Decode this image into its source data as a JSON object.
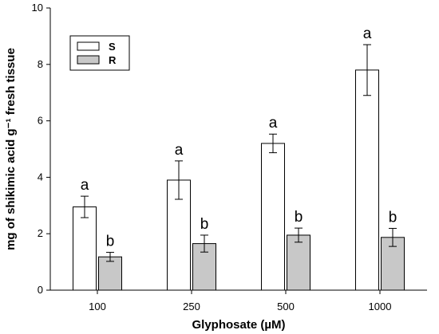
{
  "chart_data": {
    "type": "bar",
    "xlabel": "Glyphosate (µM)",
    "ylabel": "mg of shikimic acid g⁻¹ fresh tissue",
    "categories": [
      "100",
      "250",
      "500",
      "1000"
    ],
    "ylim": [
      0,
      10
    ],
    "yticks": [
      0,
      2,
      4,
      6,
      8,
      10
    ],
    "legend_position": "top-left",
    "grid": false,
    "series": [
      {
        "name": "S",
        "color": "#ffffff",
        "values": [
          2.95,
          3.9,
          5.2,
          7.8
        ],
        "errors": [
          0.38,
          0.68,
          0.33,
          0.9
        ],
        "labels": [
          "a",
          "a",
          "a",
          "a"
        ]
      },
      {
        "name": "R",
        "color": "#c8c8c8",
        "values": [
          1.18,
          1.65,
          1.95,
          1.87
        ],
        "errors": [
          0.16,
          0.3,
          0.25,
          0.32
        ],
        "labels": [
          "b",
          "b",
          "b",
          "b"
        ]
      }
    ]
  }
}
